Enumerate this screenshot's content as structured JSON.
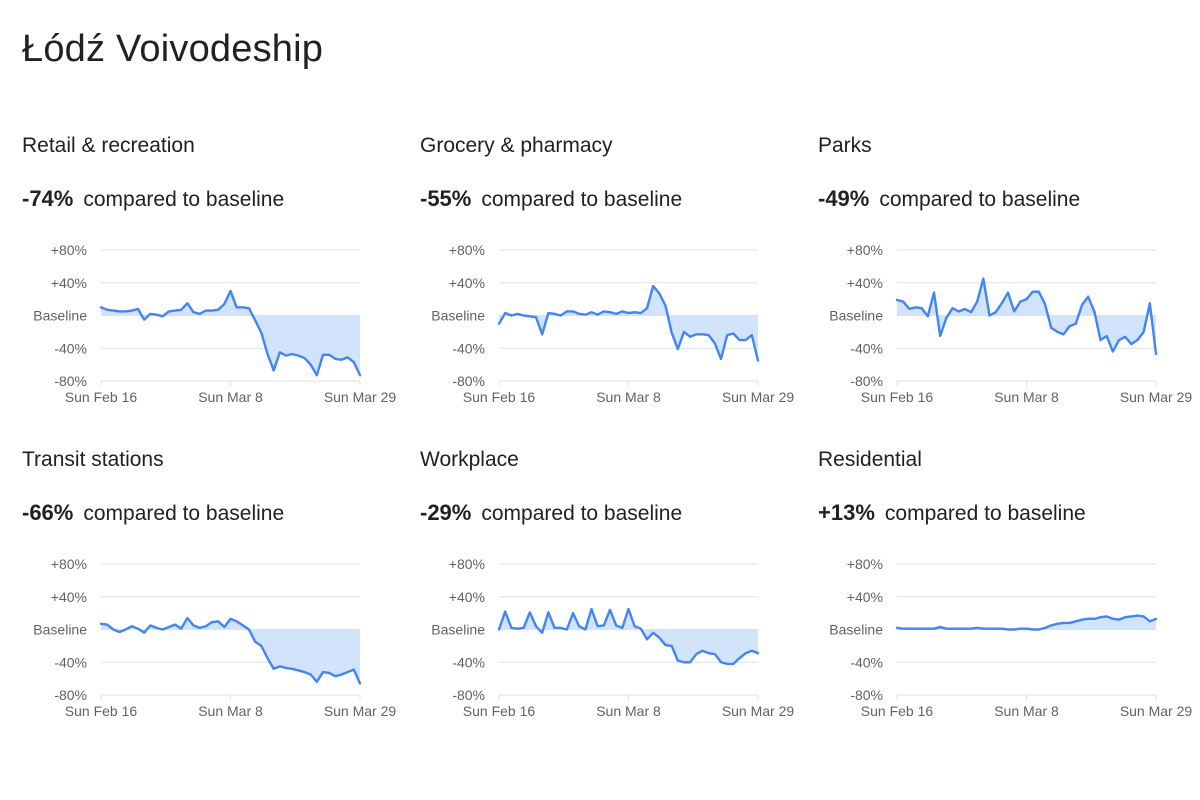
{
  "page": {
    "title": "Łódź Voivodeship"
  },
  "colors": {
    "line": "#4285f4",
    "fill": "#d2e3fc",
    "grid": "#e0e0e0",
    "text": "#202124",
    "axis_text": "#5f6368"
  },
  "chart_data": [
    {
      "type": "line",
      "title": "Retail & recreation",
      "headline_value": "-74%",
      "headline_text": "compared to baseline",
      "x_tick_labels": [
        "Sun Feb 16",
        "Sun Mar 8",
        "Sun Mar 29"
      ],
      "y_tick_labels": [
        "+80%",
        "+40%",
        "Baseline",
        "-40%",
        "-80%"
      ],
      "ylim": [
        -80,
        80
      ],
      "x_range": [
        "2020-02-16",
        "2020-03-29"
      ],
      "series": [
        {
          "values": [
            10,
            7,
            6,
            5,
            5,
            6,
            8,
            -5,
            2,
            1,
            -1,
            5,
            6,
            7,
            15,
            4,
            2,
            6,
            6,
            7,
            14,
            30,
            10,
            10,
            9,
            -6,
            -21,
            -47,
            -67,
            -45,
            -49,
            -47,
            -49,
            -52,
            -60,
            -73,
            -48,
            -48,
            -53,
            -54,
            -51,
            -57,
            -73
          ]
        }
      ]
    },
    {
      "type": "line",
      "title": "Grocery & pharmacy",
      "headline_value": "-55%",
      "headline_text": "compared to baseline",
      "x_tick_labels": [
        "Sun Feb 16",
        "Sun Mar 8",
        "Sun Mar 29"
      ],
      "y_tick_labels": [
        "+80%",
        "+40%",
        "Baseline",
        "-40%",
        "-80%"
      ],
      "ylim": [
        -80,
        80
      ],
      "x_range": [
        "2020-02-16",
        "2020-03-29"
      ],
      "series": [
        {
          "values": [
            -10,
            3,
            0,
            2,
            0,
            -1,
            -2,
            -23,
            3,
            2,
            0,
            5,
            5,
            2,
            1,
            4,
            1,
            5,
            4,
            2,
            5,
            3,
            4,
            3,
            9,
            36,
            27,
            12,
            -21,
            -41,
            -20,
            -26,
            -23,
            -23,
            -24,
            -34,
            -53,
            -24,
            -22,
            -30,
            -30,
            -24,
            -55
          ]
        }
      ]
    },
    {
      "type": "line",
      "title": "Parks",
      "headline_value": "-49%",
      "headline_text": "compared to baseline",
      "x_tick_labels": [
        "Sun Feb 16",
        "Sun Mar 8",
        "Sun Mar 29"
      ],
      "y_tick_labels": [
        "+80%",
        "+40%",
        "Baseline",
        "-40%",
        "-80%"
      ],
      "ylim": [
        -80,
        80
      ],
      "x_range": [
        "2020-02-16",
        "2020-03-29"
      ],
      "series": [
        {
          "values": [
            19,
            17,
            8,
            10,
            9,
            -1,
            28,
            -25,
            -3,
            9,
            5,
            8,
            4,
            17,
            45,
            0,
            4,
            15,
            28,
            5,
            17,
            20,
            29,
            29,
            14,
            -15,
            -20,
            -23,
            -13,
            -10,
            13,
            23,
            5,
            -30,
            -25,
            -44,
            -30,
            -26,
            -35,
            -30,
            -20,
            15,
            -47
          ]
        }
      ]
    },
    {
      "type": "line",
      "title": "Transit stations",
      "headline_value": "-66%",
      "headline_text": "compared to baseline",
      "x_tick_labels": [
        "Sun Feb 16",
        "Sun Mar 8",
        "Sun Mar 29"
      ],
      "y_tick_labels": [
        "+80%",
        "+40%",
        "Baseline",
        "-40%",
        "-80%"
      ],
      "ylim": [
        -80,
        80
      ],
      "x_range": [
        "2020-02-16",
        "2020-03-29"
      ],
      "series": [
        {
          "values": [
            7,
            6,
            0,
            -3,
            0,
            4,
            1,
            -4,
            5,
            2,
            0,
            3,
            6,
            1,
            14,
            5,
            2,
            4,
            9,
            10,
            3,
            13,
            10,
            5,
            0,
            -15,
            -20,
            -35,
            -48,
            -45,
            -47,
            -48,
            -50,
            -52,
            -55,
            -64,
            -52,
            -53,
            -57,
            -55,
            -52,
            -49,
            -66
          ]
        }
      ]
    },
    {
      "type": "line",
      "title": "Workplace",
      "headline_value": "-29%",
      "headline_text": "compared to baseline",
      "x_tick_labels": [
        "Sun Feb 16",
        "Sun Mar 8",
        "Sun Mar 29"
      ],
      "y_tick_labels": [
        "+80%",
        "+40%",
        "Baseline",
        "-40%",
        "-80%"
      ],
      "ylim": [
        -80,
        80
      ],
      "x_range": [
        "2020-02-16",
        "2020-03-29"
      ],
      "series": [
        {
          "values": [
            0,
            22,
            2,
            1,
            2,
            21,
            4,
            -4,
            21,
            2,
            2,
            0,
            20,
            4,
            0,
            25,
            4,
            5,
            24,
            5,
            2,
            25,
            4,
            1,
            -12,
            -4,
            -10,
            -19,
            -20,
            -38,
            -40,
            -40,
            -30,
            -26,
            -29,
            -30,
            -40,
            -42,
            -42,
            -35,
            -29,
            -26,
            -29
          ]
        }
      ]
    },
    {
      "type": "line",
      "title": "Residential",
      "headline_value": "+13%",
      "headline_text": "compared to baseline",
      "x_tick_labels": [
        "Sun Feb 16",
        "Sun Mar 8",
        "Sun Mar 29"
      ],
      "y_tick_labels": [
        "+80%",
        "+40%",
        "Baseline",
        "-40%",
        "-80%"
      ],
      "ylim": [
        -80,
        80
      ],
      "x_range": [
        "2020-02-16",
        "2020-03-29"
      ],
      "series": [
        {
          "values": [
            2,
            1,
            1,
            1,
            1,
            1,
            1,
            3,
            1,
            1,
            1,
            1,
            1,
            2,
            1,
            1,
            1,
            1,
            0,
            0,
            1,
            1,
            0,
            0,
            2,
            5,
            7,
            8,
            8,
            10,
            12,
            13,
            13,
            15,
            16,
            13,
            12,
            15,
            16,
            17,
            16,
            10,
            13
          ]
        }
      ]
    }
  ]
}
